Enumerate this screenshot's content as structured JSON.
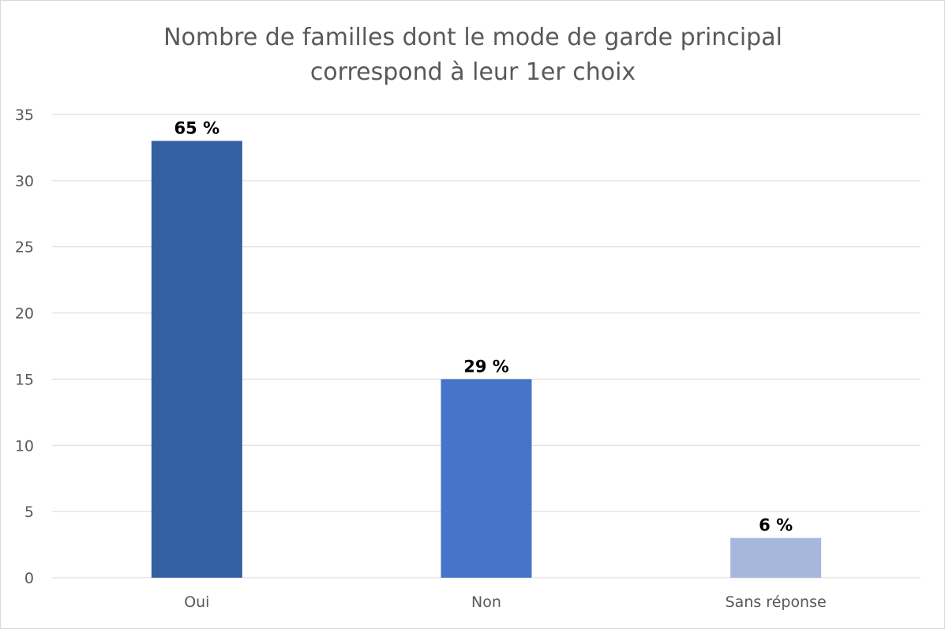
{
  "chart_data": {
    "type": "bar",
    "title_lines": [
      "Nombre de familles dont le mode de garde principal",
      "correspond à leur 1er choix"
    ],
    "categories": [
      "Oui",
      "Non",
      "Sans réponse"
    ],
    "values": [
      33,
      15,
      3
    ],
    "data_labels": [
      "65 %",
      "29 %",
      "6 %"
    ],
    "bar_colors": [
      "#355fa3",
      "#4674c8",
      "#a7b6db"
    ],
    "ylim": [
      0,
      35
    ],
    "yticks": [
      0,
      5,
      10,
      15,
      20,
      25,
      30,
      35
    ],
    "grid": true,
    "legend": "none"
  }
}
